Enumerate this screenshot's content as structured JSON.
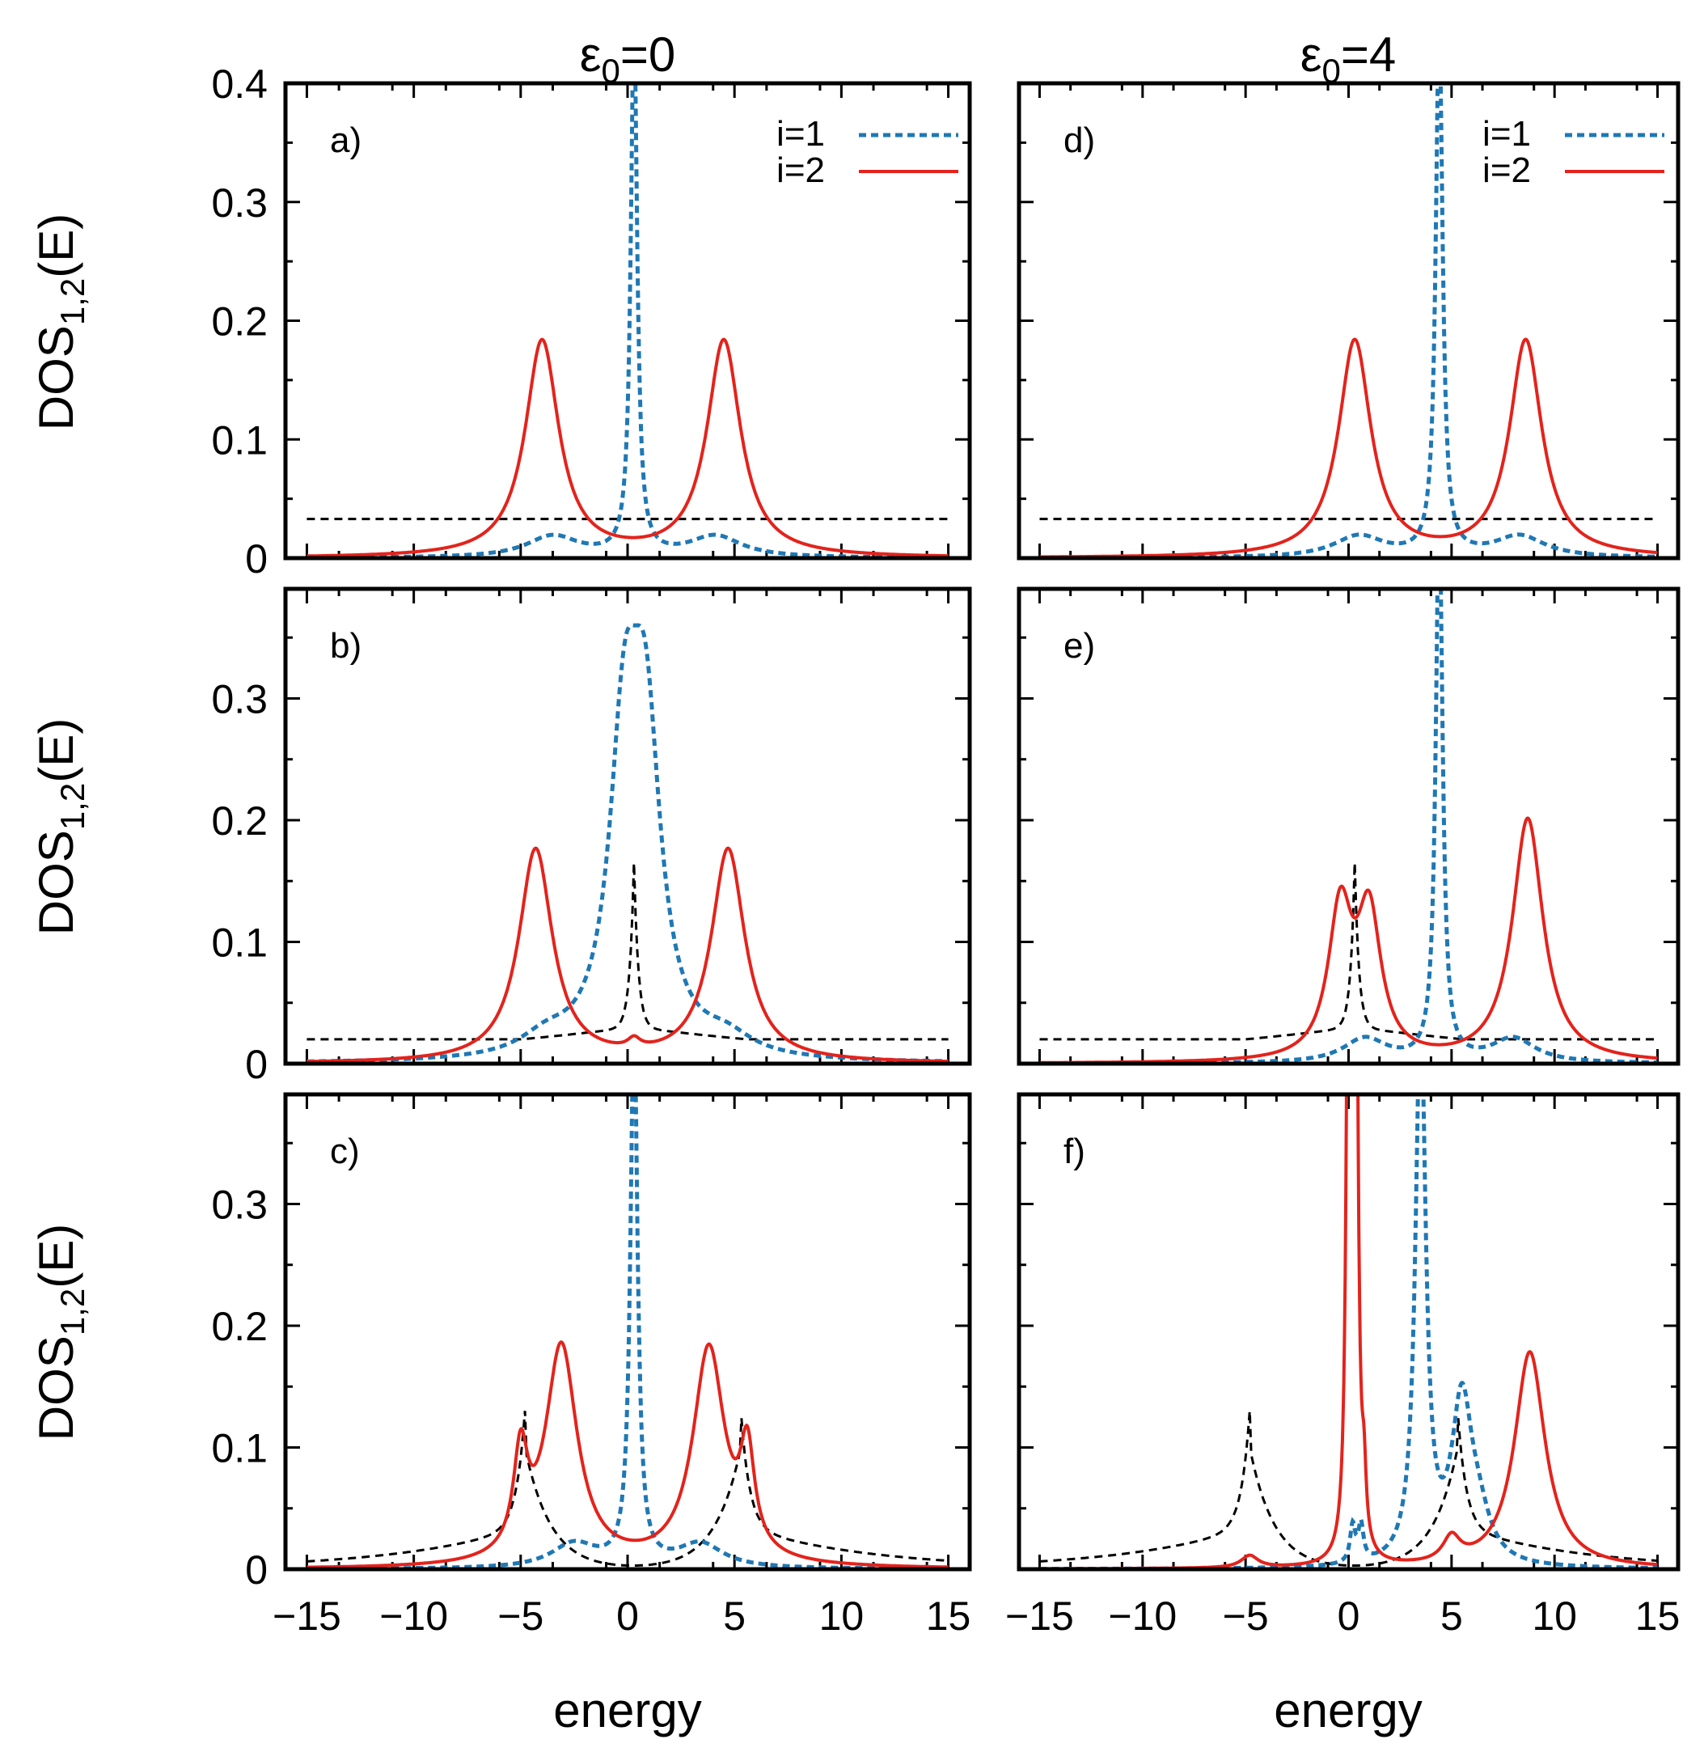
{
  "colors": {
    "i1": "#1f78b4",
    "i2": "#e3231c",
    "ref": "#000000"
  },
  "chart_data": {
    "type": "line",
    "title": "",
    "column_titles": [
      {
        "symbol": "ε",
        "sub": "0",
        "rest": "=0"
      },
      {
        "symbol": "ε",
        "sub": "0",
        "rest": "=4"
      }
    ],
    "xlabel": "energy",
    "ylabel": {
      "main": "DOS",
      "sub": "1,2",
      "rest": "(E)"
    },
    "xlim": [
      -16,
      16
    ],
    "xticks": [
      -15,
      -10,
      -5,
      0,
      5,
      10,
      15
    ],
    "xtick_labels": [
      "−15",
      "−10",
      "−5",
      "0",
      "5",
      "10",
      "15"
    ],
    "legend": [
      {
        "name": "i=1",
        "style": "dashed",
        "color": "#1f78b4"
      },
      {
        "name": "i=2",
        "style": "solid",
        "color": "#e3231c"
      }
    ],
    "legend_position": "top-right",
    "panels": [
      {
        "label": "a)",
        "e0": 0,
        "ylim": [
          0,
          0.4
        ],
        "yticks": [
          0,
          0.1,
          0.2,
          0.3,
          0.4
        ],
        "ytick_labels": [
          "0",
          "0.1",
          "0.2",
          "0.3",
          "0.4"
        ],
        "series": [
          {
            "name": "ref",
            "style": "dashed-black",
            "x": [
              -15,
              15
            ],
            "y": [
              0.033,
              0.033
            ]
          },
          {
            "name": "i=1",
            "peaks": [
              [
                0.3,
                0.45,
                0.18
              ],
              [
                -3.5,
                0.018,
                1.5
              ],
              [
                4.1,
                0.018,
                1.5
              ]
            ]
          },
          {
            "name": "i=2",
            "peaks": [
              [
                -4.0,
                0.182,
                0.95
              ],
              [
                4.5,
                0.182,
                0.95
              ]
            ]
          }
        ]
      },
      {
        "label": "b)",
        "e0": 0,
        "ylim": [
          0,
          0.39
        ],
        "yticks": [
          0,
          0.1,
          0.2,
          0.3
        ],
        "ytick_labels": [
          "0",
          "0.1",
          "0.2",
          "0.3"
        ],
        "series": [
          {
            "name": "ref",
            "style": "dashed-black",
            "cusp": [
              0.3,
              0.03,
              0.165,
              0.2
            ],
            "x": [
              -15,
              15
            ],
            "y": [
              0.02,
              0.02
            ]
          },
          {
            "name": "i=1",
            "peaks": [
              [
                -0.15,
                0.24,
                0.85
              ],
              [
                0.85,
                0.24,
                0.85
              ],
              [
                -3.8,
                0.015,
                1.5
              ],
              [
                4.6,
                0.015,
                1.5
              ]
            ]
          },
          {
            "name": "i=2",
            "peaks": [
              [
                -4.3,
                0.175,
                0.95
              ],
              [
                4.7,
                0.175,
                0.95
              ],
              [
                0.3,
                0.008,
                0.35
              ]
            ]
          }
        ]
      },
      {
        "label": "c)",
        "e0": 0,
        "ylim": [
          0,
          0.39
        ],
        "yticks": [
          0,
          0.1,
          0.2,
          0.3
        ],
        "ytick_labels": [
          "0",
          "0.1",
          "0.2",
          "0.3"
        ],
        "series": [
          {
            "name": "ref",
            "style": "dashed-black",
            "cusps": [
              [
                -4.8,
                0.13
              ],
              [
                5.3,
                0.13
              ]
            ],
            "x": [
              -15,
              15
            ],
            "y": [
              0.02,
              0.02
            ]
          },
          {
            "name": "i=1",
            "peaks": [
              [
                0.3,
                0.45,
                0.2
              ],
              [
                -2.5,
                0.02,
                1.3
              ],
              [
                3.4,
                0.02,
                1.3
              ]
            ]
          },
          {
            "name": "i=2",
            "peaks": [
              [
                -3.1,
                0.18,
                0.9
              ],
              [
                3.8,
                0.178,
                0.9
              ],
              [
                -5.0,
                0.08,
                0.4
              ],
              [
                5.6,
                0.08,
                0.4
              ]
            ]
          }
        ]
      },
      {
        "label": "d)",
        "e0": 4,
        "ylim": [
          0,
          0.4
        ],
        "yticks": [
          0,
          0.1,
          0.2,
          0.3,
          0.4
        ],
        "ytick_labels": [
          "0",
          "0.1",
          "0.2",
          "0.3",
          "0.4"
        ],
        "series": [
          {
            "name": "ref",
            "style": "dashed-black",
            "x": [
              -15,
              15
            ],
            "y": [
              0.033,
              0.033
            ]
          },
          {
            "name": "i=1",
            "peaks": [
              [
                4.4,
                0.45,
                0.2
              ],
              [
                0.5,
                0.018,
                1.5
              ],
              [
                8.3,
                0.018,
                1.5
              ]
            ]
          },
          {
            "name": "i=2",
            "peaks": [
              [
                0.3,
                0.182,
                0.95
              ],
              [
                8.6,
                0.182,
                0.95
              ]
            ]
          }
        ]
      },
      {
        "label": "e)",
        "e0": 4,
        "ylim": [
          0,
          0.39
        ],
        "yticks": [
          0,
          0.1,
          0.2,
          0.3
        ],
        "ytick_labels": [
          "0",
          "0.1",
          "0.2",
          "0.3"
        ],
        "series": [
          {
            "name": "ref",
            "style": "dashed-black",
            "cusp": [
              0.3,
              0.03,
              0.165,
              0.2
            ],
            "x": [
              -15,
              15
            ],
            "y": [
              0.02,
              0.02
            ]
          },
          {
            "name": "i=1",
            "peaks": [
              [
                4.4,
                0.45,
                0.2
              ],
              [
                0.8,
                0.02,
                1.3
              ],
              [
                8.0,
                0.02,
                1.3
              ]
            ]
          },
          {
            "name": "i=2",
            "peaks": [
              [
                -0.4,
                0.12,
                0.7
              ],
              [
                1.0,
                0.115,
                0.7
              ],
              [
                8.7,
                0.2,
                0.9
              ]
            ]
          }
        ]
      },
      {
        "label": "f)",
        "e0": 4,
        "ylim": [
          0,
          0.39
        ],
        "yticks": [
          0,
          0.1,
          0.2,
          0.3
        ],
        "ytick_labels": [
          "0",
          "0.1",
          "0.2",
          "0.3"
        ],
        "series": [
          {
            "name": "ref",
            "style": "dashed-black",
            "cusps": [
              [
                -4.8,
                0.13
              ],
              [
                5.3,
                0.13
              ]
            ],
            "x": [
              -15,
              15
            ],
            "y": [
              0.02,
              0.02
            ]
          },
          {
            "name": "i=1",
            "peaks": [
              [
                3.5,
                0.45,
                0.3
              ],
              [
                5.5,
                0.13,
                0.6
              ],
              [
                0.2,
                0.03,
                0.15
              ],
              [
                0.6,
                0.03,
                0.15
              ],
              [
                6.3,
                0.03,
                0.7
              ]
            ]
          },
          {
            "name": "i=2",
            "peaks": [
              [
                0.0,
                0.6,
                0.12
              ],
              [
                0.35,
                0.6,
                0.12
              ],
              [
                0.75,
                0.05,
                0.12
              ],
              [
                8.8,
                0.178,
                0.9
              ],
              [
                5.0,
                0.02,
                0.5
              ],
              [
                -4.8,
                0.01,
                0.5
              ]
            ]
          }
        ]
      }
    ]
  }
}
